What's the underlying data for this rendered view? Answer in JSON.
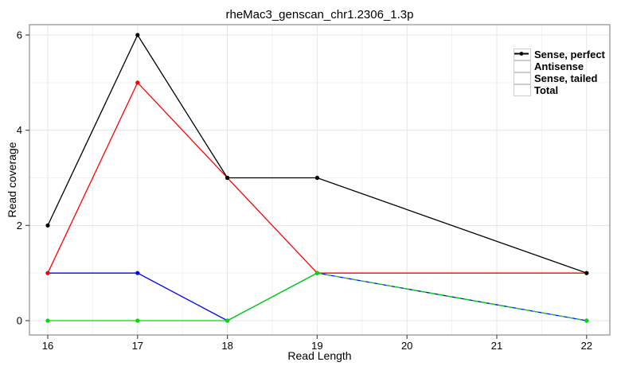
{
  "chart_data": {
    "type": "line",
    "title": "rheMac3_genscan_chr1.2306_1.3p",
    "xlabel": "Read Length",
    "ylabel": "Read coverage",
    "x": [
      16,
      17,
      18,
      19,
      22
    ],
    "series": [
      {
        "name": "Sense, perfect",
        "color": "#ff0000",
        "values": [
          1,
          5,
          3,
          1,
          1
        ]
      },
      {
        "name": "Antisense",
        "color": "#0000ff",
        "values": [
          1,
          1,
          0,
          1,
          0
        ]
      },
      {
        "name": "Sense, tailed",
        "color": "#00dd00",
        "values": [
          0,
          0,
          0,
          1,
          0
        ],
        "dashed_from_x": 19
      },
      {
        "name": "Total",
        "color": "#000000",
        "values": [
          2,
          6,
          3,
          3,
          1
        ]
      }
    ],
    "x_ticks": [
      16,
      17,
      18,
      19,
      20,
      21,
      22
    ],
    "y_ticks": [
      0,
      2,
      4,
      6
    ],
    "xlim": [
      15.8,
      22.26
    ],
    "ylim": [
      -0.3,
      6.22
    ],
    "grid": "major and minor, light gray",
    "legend_position": "top-right inside panel",
    "marker": "filled circle"
  },
  "style_colors": {
    "panel_border": "#8e8e8e",
    "grid_major": "#e5e5e5",
    "grid_minor": "#f2f2f2",
    "tick": "#4d4d4d",
    "legend_key_border": "#cccccc"
  }
}
